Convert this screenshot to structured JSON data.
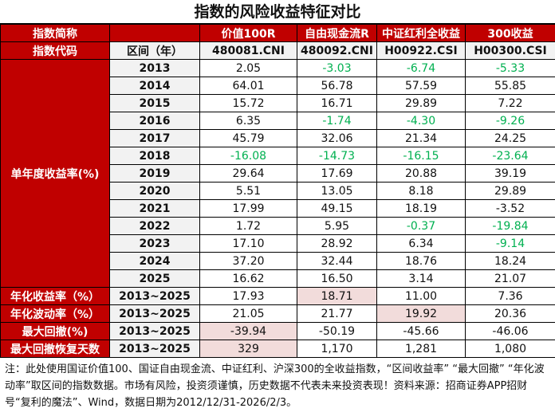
{
  "title": "指数的风险收益特征对比",
  "header": {
    "name_label": "指数简称",
    "code_label": "指数代码",
    "period_label": "区间（年）",
    "indices": [
      {
        "name": "价值100R",
        "code": "480081.CNI"
      },
      {
        "name": "自由现金流R",
        "code": "480092.CNI"
      },
      {
        "name": "中证红利全收益",
        "code": "H00922.CSI"
      },
      {
        "name": "300收益",
        "code": "H00300.CSI"
      }
    ]
  },
  "annual": {
    "label": "单年度收益率(%)",
    "rows": [
      {
        "year": "2013",
        "values": [
          "2.05",
          "-3.03",
          "-6.74",
          "-5.33"
        ]
      },
      {
        "year": "2014",
        "values": [
          "64.01",
          "56.78",
          "57.59",
          "55.85"
        ]
      },
      {
        "year": "2015",
        "values": [
          "15.72",
          "16.71",
          "29.89",
          "7.22"
        ]
      },
      {
        "year": "2016",
        "values": [
          "6.35",
          "-1.74",
          "-4.30",
          "-9.26"
        ]
      },
      {
        "year": "2017",
        "values": [
          "45.79",
          "32.06",
          "21.34",
          "24.25"
        ]
      },
      {
        "year": "2018",
        "values": [
          "-16.08",
          "-14.73",
          "-16.15",
          "-23.64"
        ]
      },
      {
        "year": "2019",
        "values": [
          "29.64",
          "17.69",
          "20.88",
          "39.19"
        ]
      },
      {
        "year": "2020",
        "values": [
          "5.51",
          "13.05",
          "8.18",
          "29.89"
        ]
      },
      {
        "year": "2021",
        "values": [
          "17.99",
          "49.15",
          "18.19",
          "-3.52"
        ]
      },
      {
        "year": "2022",
        "values": [
          "1.72",
          "5.95",
          "-0.37",
          "-19.84"
        ]
      },
      {
        "year": "2023",
        "values": [
          "17.10",
          "28.92",
          "6.34",
          "-9.14"
        ]
      },
      {
        "year": "2024",
        "values": [
          "37.20",
          "32.44",
          "18.76",
          "18.24"
        ]
      },
      {
        "year": "2025",
        "values": [
          "16.62",
          "16.50",
          "3.14",
          "21.07"
        ]
      }
    ]
  },
  "summary": [
    {
      "label": "年化收益率（%）",
      "period": "2013~2025",
      "values": [
        "17.93",
        "18.71",
        "11.00",
        "7.36"
      ],
      "highlight": 1
    },
    {
      "label": "年化波动率（%）",
      "period": "2013~2025",
      "values": [
        "21.05",
        "21.77",
        "19.92",
        "20.36"
      ],
      "highlight": 2
    },
    {
      "label": "最大回撤(%)",
      "period": "2013~2025",
      "values": [
        "-39.94",
        "-50.19",
        "-45.66",
        "-46.06"
      ],
      "highlight": 0
    },
    {
      "label": "最大回撤恢复天数",
      "period": "2013~2025",
      "values": [
        "329",
        "1,170",
        "1,281",
        "1,080"
      ],
      "highlight": 0
    }
  ],
  "note": "注：此处使用国证价值100、国证自由现金流、中证红利、沪深300的全收益指数，“区间收益率” “最大回撤” “年化波动率”取区间的指数数据。市场有风险，投资须谨慎，历史数据不代表未来投资表现！资料来源：招商证券APP招财号“复利的魔法”、Wind，数据日期为2012/12/31-2026/2/3。",
  "colors": {
    "header_red": "#c00000",
    "negative_green": "#00b050",
    "highlight_pink": "#f2dcdb",
    "row_label_grey": "#f2f2f2"
  }
}
